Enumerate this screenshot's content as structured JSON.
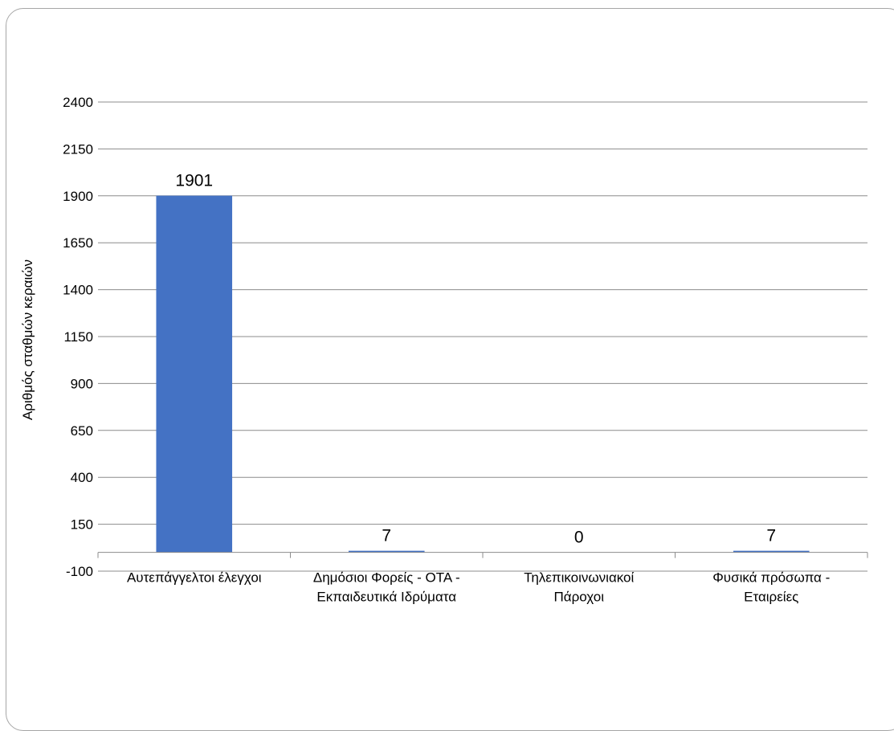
{
  "chart_data": {
    "type": "bar",
    "title": "",
    "xlabel": "",
    "ylabel": "Αριθμός σταθμών κεραιών",
    "ylim": [
      -100,
      2400
    ],
    "yticks": [
      2400,
      2150,
      1900,
      1650,
      1400,
      1150,
      900,
      650,
      400,
      150,
      -100
    ],
    "grid": true,
    "legend": "none",
    "categories": [
      [
        "Αυτεπάγγελτοι έλεγχοι"
      ],
      [
        "Δημόσιοι Φορείς - ΟΤΑ -",
        "Εκπαιδευτικά Ιδρύματα"
      ],
      [
        "Τηλεπικοινωνιακοί",
        "Πάροχοι"
      ],
      [
        "Φυσικά πρόσωπα -",
        "Εταιρείες"
      ]
    ],
    "values": [
      1901,
      7,
      0,
      7
    ],
    "data_labels": [
      "1901",
      "7",
      "0",
      "7"
    ],
    "bar_color": "#4472c4",
    "grid_color": "#8c8c8c"
  }
}
